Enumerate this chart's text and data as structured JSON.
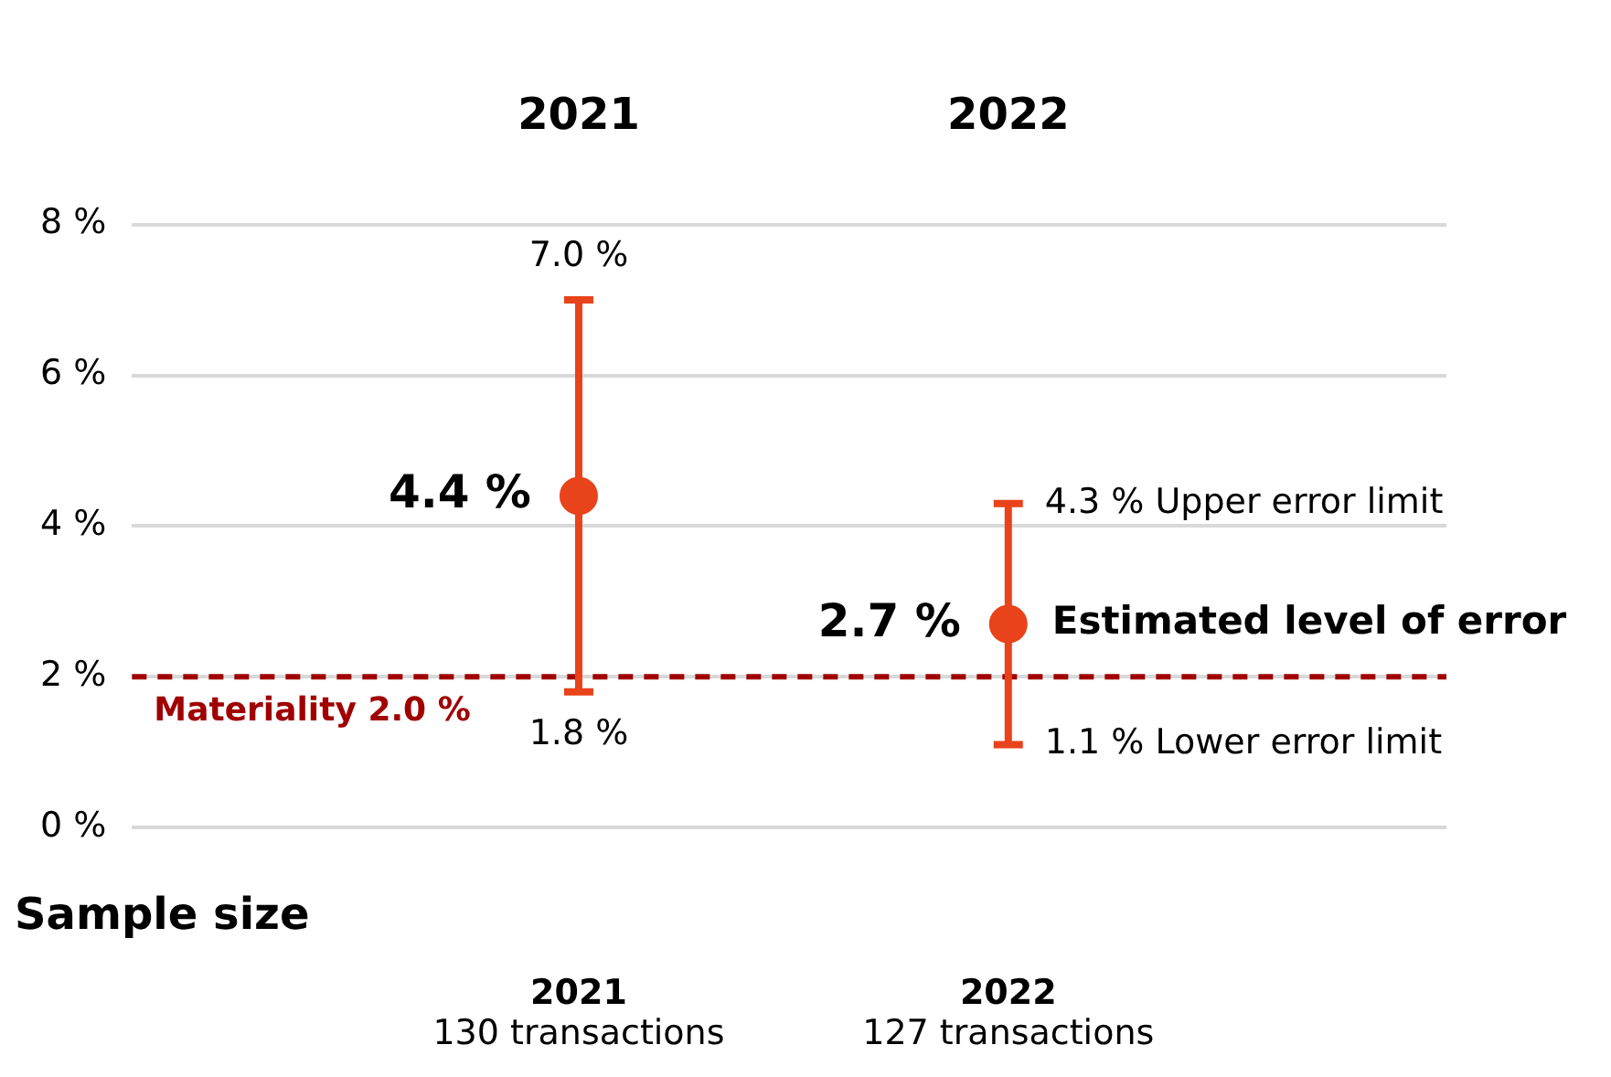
{
  "chart_data": {
    "type": "scatter",
    "categories": [
      "2021",
      "2022"
    ],
    "values": [
      4.4,
      2.7
    ],
    "errors": [
      [
        1.8,
        7.0
      ],
      [
        1.1,
        4.3
      ]
    ],
    "value_labels": [
      "4.4 %",
      "2.7 %"
    ],
    "color": "#e8431a",
    "marker": "circle",
    "ylim": [
      0,
      8
    ],
    "yticks": [
      {
        "value": 0,
        "label": "0 %"
      },
      {
        "value": 2,
        "label": "2 %"
      },
      {
        "value": 4,
        "label": "4 %"
      },
      {
        "value": 6,
        "label": "6 %"
      },
      {
        "value": 8,
        "label": "8 %"
      }
    ],
    "grid": "y",
    "legend": false,
    "ref_lines": [
      {
        "axis": "y",
        "value": 2,
        "label": "Materiality 2.0 %",
        "color": "#a00000",
        "line_style": "dashed"
      }
    ],
    "annotations": [
      {
        "text": "7.0 %",
        "x": "2021",
        "y": 7.0
      },
      {
        "text": "1.8 %",
        "x": "2021",
        "y": 1.8
      },
      {
        "text": "4.3 % Upper error limit",
        "x": "2022",
        "y": 4.3
      },
      {
        "text": "1.1 % Lower error limit",
        "x": "2022",
        "y": 1.1
      },
      {
        "text": "Estimated level of error",
        "x": "2022",
        "y": 2.7
      },
      "Sample size",
      "130 transactions",
      "127 transactions"
    ]
  }
}
